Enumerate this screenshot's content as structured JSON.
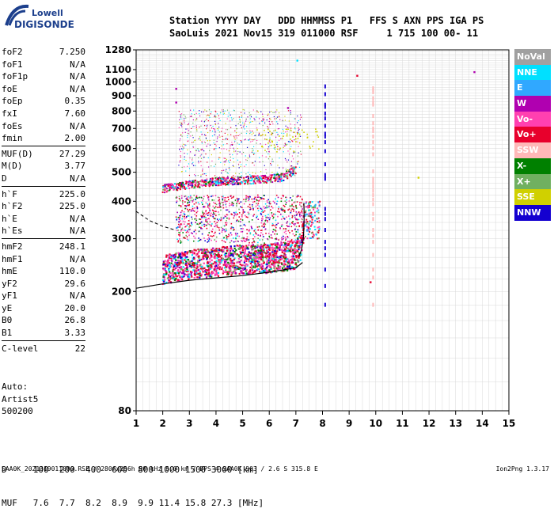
{
  "logo": {
    "line1": "Lowell",
    "line2": "DIGISONDE"
  },
  "header": {
    "line1": "Station YYYY DAY   DDD HHMMSS P1   FFS S AXN PPS IGA PS",
    "line2": "SaoLuis 2021 Nov15 319 011000 RSF     1 715 100 00- 11"
  },
  "params_groups": [
    [
      {
        "name": "foF2",
        "value": "7.250"
      },
      {
        "name": "foF1",
        "value": "N/A"
      },
      {
        "name": "foF1p",
        "value": "N/A"
      },
      {
        "name": "foE",
        "value": "N/A"
      },
      {
        "name": "foEp",
        "value": "0.35"
      },
      {
        "name": "fxI",
        "value": "7.60"
      },
      {
        "name": "foEs",
        "value": "N/A"
      },
      {
        "name": "fmin",
        "value": "2.00"
      }
    ],
    [
      {
        "name": "MUF(D)",
        "value": "27.29"
      },
      {
        "name": "M(D)",
        "value": "3.77"
      },
      {
        "name": "D",
        "value": "N/A"
      }
    ],
    [
      {
        "name": "h`F",
        "value": "225.0"
      },
      {
        "name": "h`F2",
        "value": "225.0"
      },
      {
        "name": "h`E",
        "value": "N/A"
      },
      {
        "name": "h`Es",
        "value": "N/A"
      }
    ],
    [
      {
        "name": "hmF2",
        "value": "248.1"
      },
      {
        "name": "hmF1",
        "value": "N/A"
      },
      {
        "name": "hmE",
        "value": "110.0"
      },
      {
        "name": "yF2",
        "value": "29.6"
      },
      {
        "name": "yF1",
        "value": "N/A"
      },
      {
        "name": "yE",
        "value": "20.0"
      },
      {
        "name": "B0",
        "value": "26.8"
      },
      {
        "name": "B1",
        "value": "3.33"
      }
    ],
    [
      {
        "name": "C-level",
        "value": "22"
      }
    ]
  ],
  "auto": {
    "label": "Auto:",
    "software": "Artist5",
    "version": "500200"
  },
  "muf_table": {
    "d_row": "D     100  200  400  600  800 1000 1500 3000 [km]",
    "muf_row": "MUF   7.6  7.7  8.2  8.9  9.9 11.4 15.8 27.3 [MHz]"
  },
  "footer": {
    "left": "SAA0K_2021319011000.RSF / 280fx256h 50 kHz 5.0 km / DPS-4 SAA0K 903 / 2.6 S 315.8 E",
    "right": "Ion2Png 1.3.17"
  },
  "legend": [
    {
      "label": "NoVal",
      "color": "#a0a0a0"
    },
    {
      "label": "NNE",
      "color": "#00e0ff"
    },
    {
      "label": "E",
      "color": "#30a8ff"
    },
    {
      "label": "W",
      "color": "#b000b0"
    },
    {
      "label": "Vo-",
      "color": "#ff40b0"
    },
    {
      "label": "Vo+",
      "color": "#e8002c"
    },
    {
      "label": "SSW",
      "color": "#ffb8b8"
    },
    {
      "label": "X-",
      "color": "#008000"
    },
    {
      "label": "X+",
      "color": "#70b060"
    },
    {
      "label": "SSE",
      "color": "#d0d000"
    },
    {
      "label": "NNW",
      "color": "#1400d0"
    }
  ],
  "chart_data": {
    "type": "scatter",
    "title": "",
    "xlabel": "",
    "ylabel": "",
    "xlim": [
      1,
      15
    ],
    "ylim": [
      80,
      1280
    ],
    "y_scale": "log",
    "grid": true,
    "x_ticks": [
      1,
      2,
      3,
      4,
      5,
      6,
      7,
      8,
      9,
      10,
      11,
      12,
      13,
      14,
      15
    ],
    "y_ticks": [
      80,
      200,
      300,
      400,
      500,
      600,
      700,
      800,
      900,
      1000,
      1100,
      1280
    ],
    "traces": [
      {
        "name": "F-trace lower echo",
        "x": [
          2.0,
          2.5,
          3.0,
          4.0,
          5.0,
          6.0,
          6.5,
          7.0,
          7.2,
          7.3
        ],
        "y": [
          240,
          245,
          250,
          255,
          260,
          262,
          265,
          270,
          290,
          330
        ]
      },
      {
        "name": "F-trace upper echo",
        "x": [
          2.0,
          3.0,
          4.0,
          5.0,
          6.0,
          6.5,
          7.0
        ],
        "y": [
          440,
          455,
          465,
          470,
          475,
          480,
          510
        ]
      }
    ],
    "fitted_profile": {
      "x": [
        1.0,
        2.0,
        3.0,
        4.0,
        5.0,
        6.0,
        7.0,
        7.25
      ],
      "y": [
        205,
        212,
        218,
        222,
        226,
        232,
        240,
        250
      ]
    },
    "dashed_profile": {
      "x": [
        1.0,
        1.5,
        2.0,
        2.5
      ],
      "y": [
        370,
        345,
        330,
        320
      ]
    },
    "vertical_marks": [
      {
        "x": 8.1,
        "y_range": [
          180,
          1000
        ],
        "color": "#1400d0"
      },
      {
        "x": 9.9,
        "y_range": [
          180,
          1000
        ],
        "color": "#ffb8b8"
      }
    ]
  }
}
